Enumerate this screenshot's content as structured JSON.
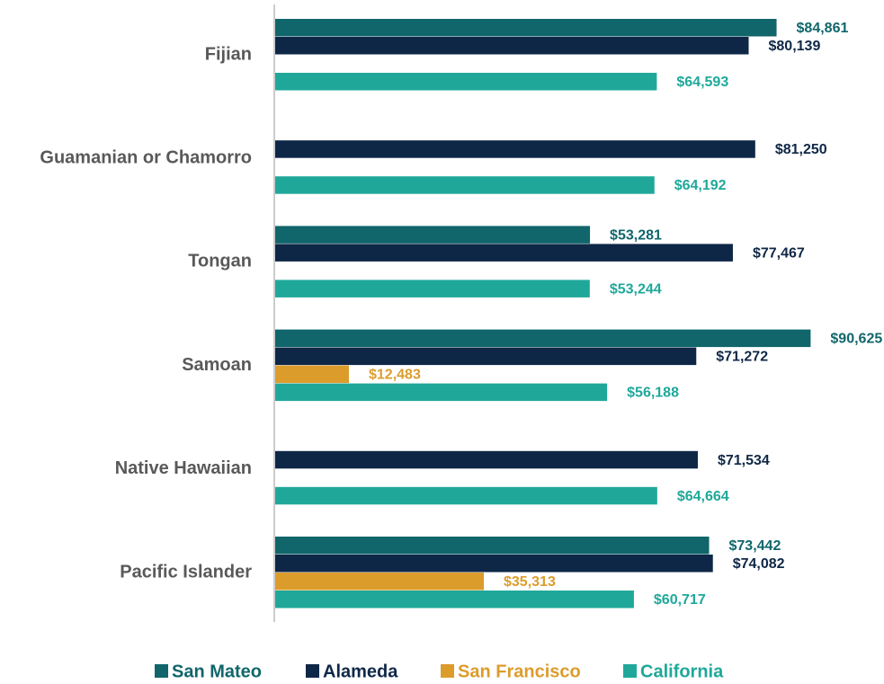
{
  "chart_data": {
    "type": "bar",
    "orientation": "horizontal",
    "categories": [
      "Fijian",
      "Guamanian or Chamorro",
      "Tongan",
      "Samoan",
      "Native Hawaiian",
      "Pacific Islander"
    ],
    "series": [
      {
        "name": "San Mateo",
        "color": "#10666b",
        "values": [
          84861,
          null,
          53281,
          90625,
          null,
          73442
        ],
        "value_labels": [
          "$84,861",
          null,
          "$53,281",
          "$90,625",
          null,
          "$73,442"
        ]
      },
      {
        "name": "Alameda",
        "color": "#0f2747",
        "values": [
          80139,
          81250,
          77467,
          71272,
          71534,
          74082
        ],
        "value_labels": [
          "$80,139",
          "$81,250",
          "$77,467",
          "$71,272",
          "$71,534",
          "$74,082"
        ]
      },
      {
        "name": "San Francisco",
        "color": "#dc9c2c",
        "values": [
          null,
          null,
          null,
          12483,
          null,
          35313
        ],
        "value_labels": [
          null,
          null,
          null,
          "$12,483",
          null,
          "$35,313"
        ]
      },
      {
        "name": "California",
        "color": "#1fa89a",
        "values": [
          64593,
          64192,
          53244,
          56188,
          64664,
          60717
        ],
        "value_labels": [
          "$64,593",
          "$64,192",
          "$53,244",
          "$56,188",
          "$64,664",
          "$60,717"
        ]
      }
    ],
    "xlim": [
      0,
      100000
    ],
    "legend": "bottom"
  }
}
